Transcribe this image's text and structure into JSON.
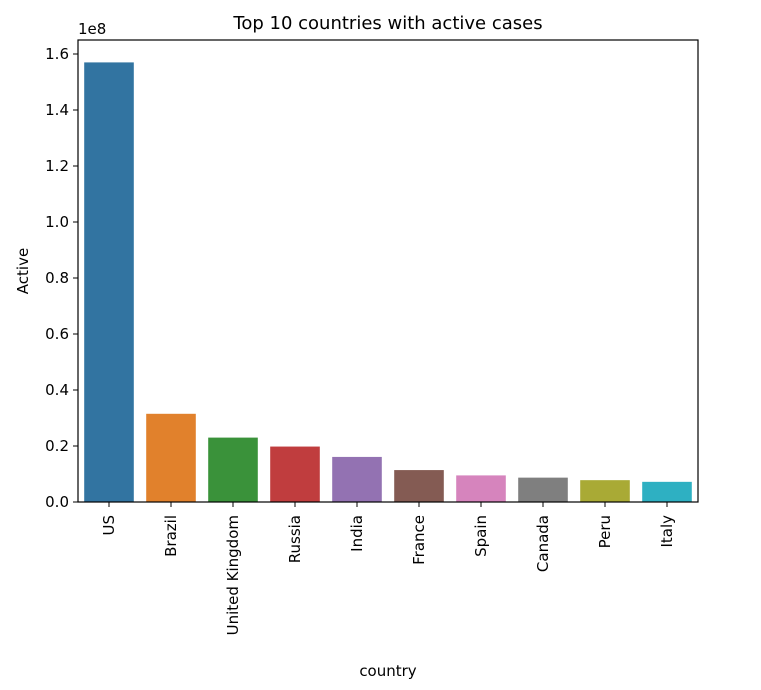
{
  "chart_data": {
    "type": "bar",
    "title": "Top 10 countries with active cases",
    "xlabel": "country",
    "ylabel": "Active",
    "y_scale_label": "1e8",
    "categories": [
      "US",
      "Brazil",
      "United Kingdom",
      "Russia",
      "India",
      "France",
      "Spain",
      "Canada",
      "Peru",
      "Italy"
    ],
    "values": [
      157000000,
      31500000,
      23000000,
      19800000,
      16100000,
      11400000,
      9500000,
      8700000,
      7800000,
      7200000
    ],
    "colors": [
      "#3274a1",
      "#e1812c",
      "#3a923a",
      "#c03d3e",
      "#9372b2",
      "#845b53",
      "#d684bd",
      "#7f7f7f",
      "#a9aa35",
      "#2eb0c2"
    ],
    "ylim": [
      0,
      165000000
    ],
    "yticks": [
      0,
      20000000,
      40000000,
      60000000,
      80000000,
      100000000,
      120000000,
      140000000,
      160000000
    ],
    "ytick_labels": [
      "0.0",
      "0.2",
      "0.4",
      "0.6",
      "0.8",
      "1.0",
      "1.2",
      "1.4",
      "1.6"
    ],
    "grid": false,
    "legend": "none"
  }
}
